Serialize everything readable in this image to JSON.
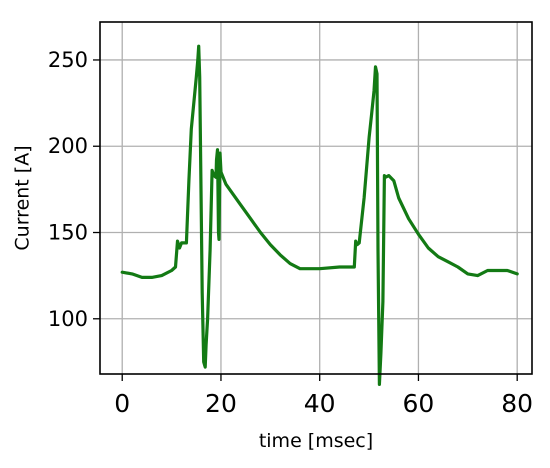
{
  "chart_data": {
    "type": "line",
    "title": "",
    "xlabel": "time [msec]",
    "ylabel": "Current [A]",
    "xlim": [
      -4.5,
      83
    ],
    "ylim": [
      68,
      272
    ],
    "grid": true,
    "xticks": [
      0,
      20,
      40,
      60,
      80
    ],
    "yticks": [
      100,
      150,
      200,
      250
    ],
    "series": [
      {
        "color": "#137a14",
        "x": [
          0,
          2,
          4,
          6,
          8,
          10,
          10.8,
          11.2,
          11.6,
          12,
          13,
          13.5,
          14,
          15,
          15.3,
          15.5,
          15.7,
          15.9,
          16.2,
          16.5,
          16.8,
          17,
          17.3,
          17.8,
          18.2,
          18.6,
          19,
          19.1,
          19.3,
          19.5,
          19.6,
          19.8,
          20,
          21,
          22,
          24,
          26,
          28,
          30,
          32,
          34,
          36,
          40,
          44,
          46,
          47,
          47.3,
          47.6,
          48,
          49,
          50,
          50.5,
          51,
          51.3,
          51.6,
          51.8,
          52.1,
          52.4,
          52.8,
          53.1,
          53.3,
          54,
          55,
          56,
          58,
          60,
          62,
          64,
          66,
          68,
          70,
          72,
          74,
          76,
          78,
          80
        ],
        "values": [
          127,
          126,
          124,
          124,
          125,
          128,
          130,
          145,
          141,
          144,
          144,
          180,
          210,
          240,
          250,
          258,
          240,
          190,
          115,
          75,
          72,
          85,
          100,
          140,
          186,
          183,
          182,
          192,
          198,
          150,
          146,
          196,
          185,
          178,
          174,
          166,
          158,
          150,
          143,
          137,
          132,
          129,
          129,
          130,
          130,
          130,
          145,
          143,
          144,
          170,
          205,
          218,
          232,
          246,
          242,
          140,
          62,
          80,
          110,
          183,
          182,
          183,
          180,
          170,
          158,
          149,
          141,
          136,
          133,
          130,
          126,
          125,
          128,
          128,
          128,
          126
        ]
      }
    ]
  }
}
